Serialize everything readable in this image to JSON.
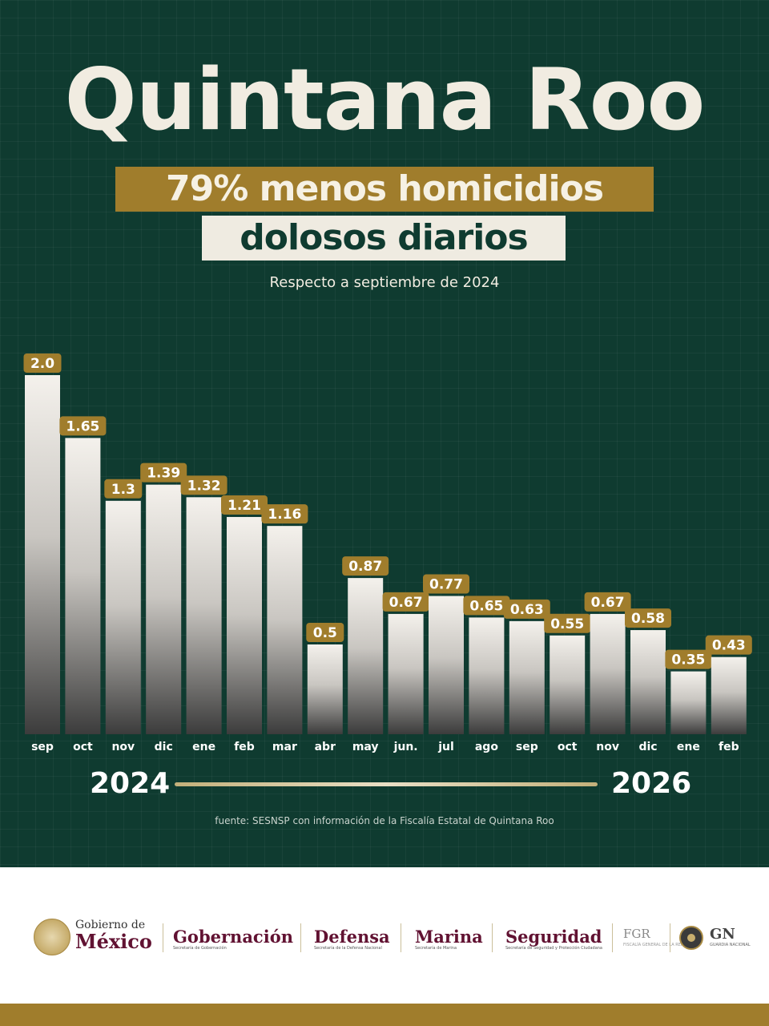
{
  "header": {
    "title": "Quintana Roo",
    "headline_1": "79% menos homicidios",
    "headline_2": "dolosos diarios",
    "subtitle": "Respecto a septiembre de 2024"
  },
  "chart_data": {
    "type": "bar",
    "title": "",
    "xlabel": "",
    "ylabel": "",
    "categories": [
      "sep",
      "oct",
      "nov",
      "dic",
      "ene",
      "feb",
      "mar",
      "abr",
      "may",
      "jun.",
      "jul",
      "ago",
      "sep",
      "oct",
      "nov",
      "dic",
      "ene",
      "feb"
    ],
    "values": [
      2.0,
      1.65,
      1.3,
      1.39,
      1.32,
      1.21,
      1.16,
      0.5,
      0.87,
      0.67,
      0.77,
      0.65,
      0.63,
      0.55,
      0.67,
      0.58,
      0.35,
      0.43
    ],
    "value_labels": [
      "2.0",
      "1.65",
      "1.3",
      "1.39",
      "1.32",
      "1.21",
      "1.16",
      "0.5",
      "0.87",
      "0.67",
      "0.77",
      "0.65",
      "0.63",
      "0.55",
      "0.67",
      "0.58",
      "0.35",
      "0.43"
    ],
    "ylim": [
      0,
      2.0
    ],
    "grid": false,
    "label_color": "#a07d2c"
  },
  "timeline": {
    "start_year": "2024",
    "end_year": "2026"
  },
  "source": "fuente: SESNSP con información de la Fiscalía Estatal de Quintana Roo",
  "footer": {
    "gobierno_line1": "Gobierno de",
    "gobierno_line2": "México",
    "gobernacion": "Gobernación",
    "gobernacion_sub": "Secretaría de Gobernación",
    "defensa": "Defensa",
    "defensa_sub": "Secretaría de la Defensa Nacional",
    "marina": "Marina",
    "marina_sub": "Secretaría de Marina",
    "seguridad": "Seguridad",
    "seguridad_sub": "Secretaría de Seguridad y Protección Ciudadana",
    "fgr": "FGR",
    "fgr_sub": "FISCALÍA GENERAL DE LA REPÚBLICA",
    "gn": "GN",
    "gn_sub": "GUARDIA NACIONAL"
  },
  "colors": {
    "background": "#0f3b30",
    "gold": "#a07d2c",
    "cream": "#efebe1",
    "institution_red": "#611232"
  }
}
